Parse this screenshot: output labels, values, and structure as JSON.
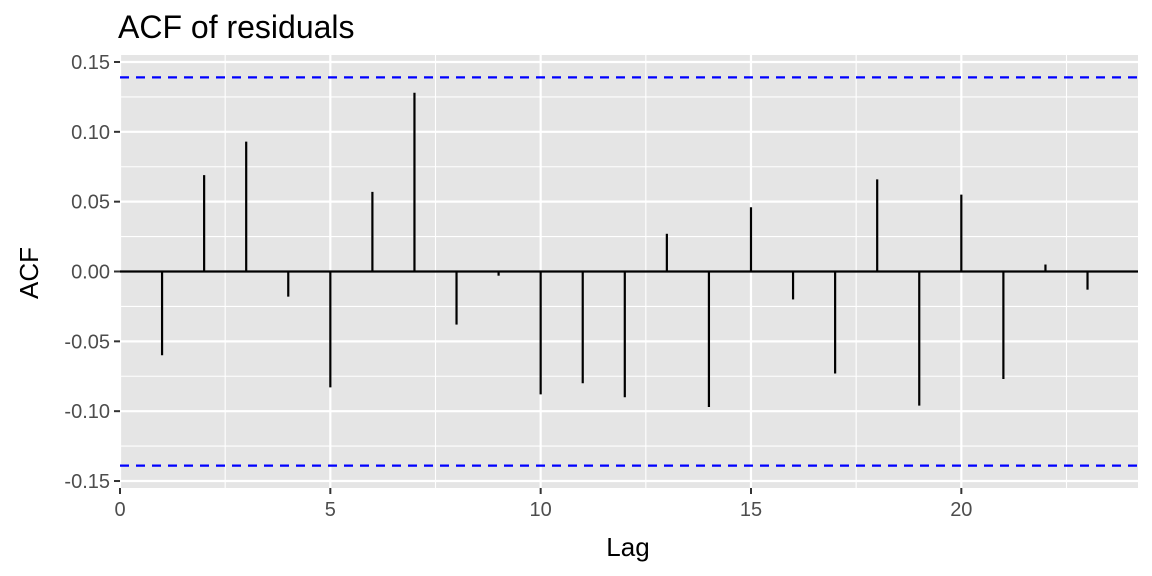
{
  "chart_data": {
    "type": "bar",
    "title": "ACF of residuals",
    "xlabel": "Lag",
    "ylabel": "ACF",
    "xlim": [
      0,
      24.2
    ],
    "ylim": [
      -0.155,
      0.155
    ],
    "x_ticks": [
      0,
      5,
      10,
      15,
      20
    ],
    "x_tick_labels": [
      "0",
      "5",
      "10",
      "15",
      "20"
    ],
    "y_ticks": [
      -0.15,
      -0.1,
      -0.05,
      0.0,
      0.05,
      0.1,
      0.15
    ],
    "y_tick_labels": [
      "-0.15",
      "-0.10",
      "-0.05",
      "0.00",
      "0.05",
      "0.10",
      "0.15"
    ],
    "grid": true,
    "lags": [
      1,
      2,
      3,
      4,
      5,
      6,
      7,
      8,
      9,
      10,
      11,
      12,
      13,
      14,
      15,
      16,
      17,
      18,
      19,
      20,
      21,
      22,
      23
    ],
    "values": [
      -0.06,
      0.069,
      0.093,
      -0.018,
      -0.083,
      0.057,
      0.128,
      -0.038,
      -0.003,
      -0.088,
      -0.08,
      -0.09,
      0.027,
      -0.097,
      0.046,
      -0.02,
      -0.073,
      0.066,
      -0.096,
      0.055,
      -0.077,
      0.005,
      -0.013
    ],
    "confidence_bounds": [
      -0.139,
      0.139
    ],
    "colors": {
      "panel": "#e5e5e5",
      "grid": "#ffffff",
      "bar": "#000000",
      "bounds": "#0000ff",
      "tick_text": "#4d4d4d"
    }
  }
}
